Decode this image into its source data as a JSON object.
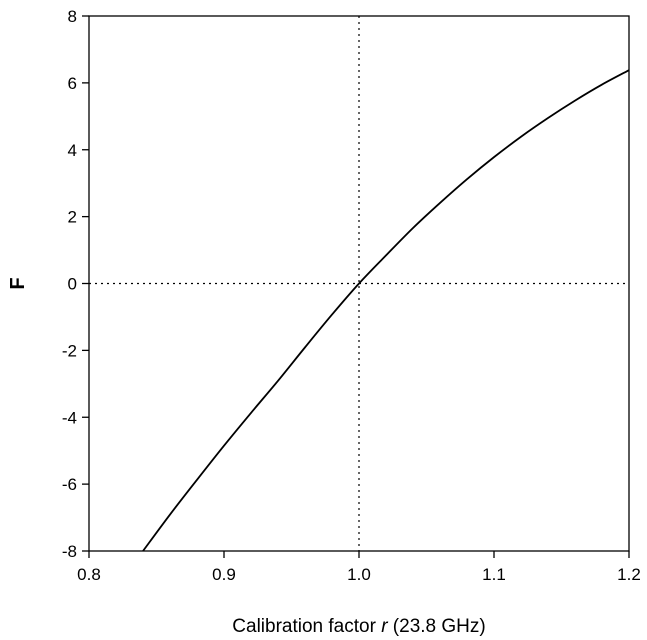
{
  "chart_data": {
    "type": "line",
    "xlabel_prefix": "Calibration factor ",
    "xlabel_var": "r",
    "xlabel_suffix": " (23.8 GHz)",
    "ylabel": "F",
    "xlim": [
      0.8,
      1.2
    ],
    "ylim": [
      -8,
      8
    ],
    "x_ticks": [
      0.8,
      0.9,
      1.0,
      1.1,
      1.2
    ],
    "x_tick_labels": [
      "0.8",
      "0.9",
      "1.0",
      "1.1",
      "1.2"
    ],
    "y_ticks": [
      -8,
      -6,
      -4,
      -2,
      0,
      2,
      4,
      6,
      8
    ],
    "y_tick_labels": [
      "-8",
      "-6",
      "-4",
      "-2",
      "0",
      "2",
      "4",
      "6",
      "8"
    ],
    "grid": false,
    "reference_lines": [
      {
        "orientation": "vertical",
        "x": 1.0,
        "style": "dotted"
      },
      {
        "orientation": "horizontal",
        "y": 0,
        "style": "dotted"
      }
    ],
    "series": [
      {
        "color": "#000000",
        "x": [
          0.84,
          0.86,
          0.88,
          0.9,
          0.92,
          0.94,
          0.96,
          0.98,
          1.0,
          1.02,
          1.04,
          1.06,
          1.08,
          1.1,
          1.12,
          1.14,
          1.16,
          1.18,
          1.2
        ],
        "y": [
          -8.0,
          -6.91,
          -5.87,
          -4.85,
          -3.87,
          -2.91,
          -1.91,
          -0.93,
          0.0,
          0.84,
          1.66,
          2.41,
          3.12,
          3.78,
          4.39,
          4.95,
          5.47,
          5.95,
          6.38
        ]
      }
    ]
  }
}
